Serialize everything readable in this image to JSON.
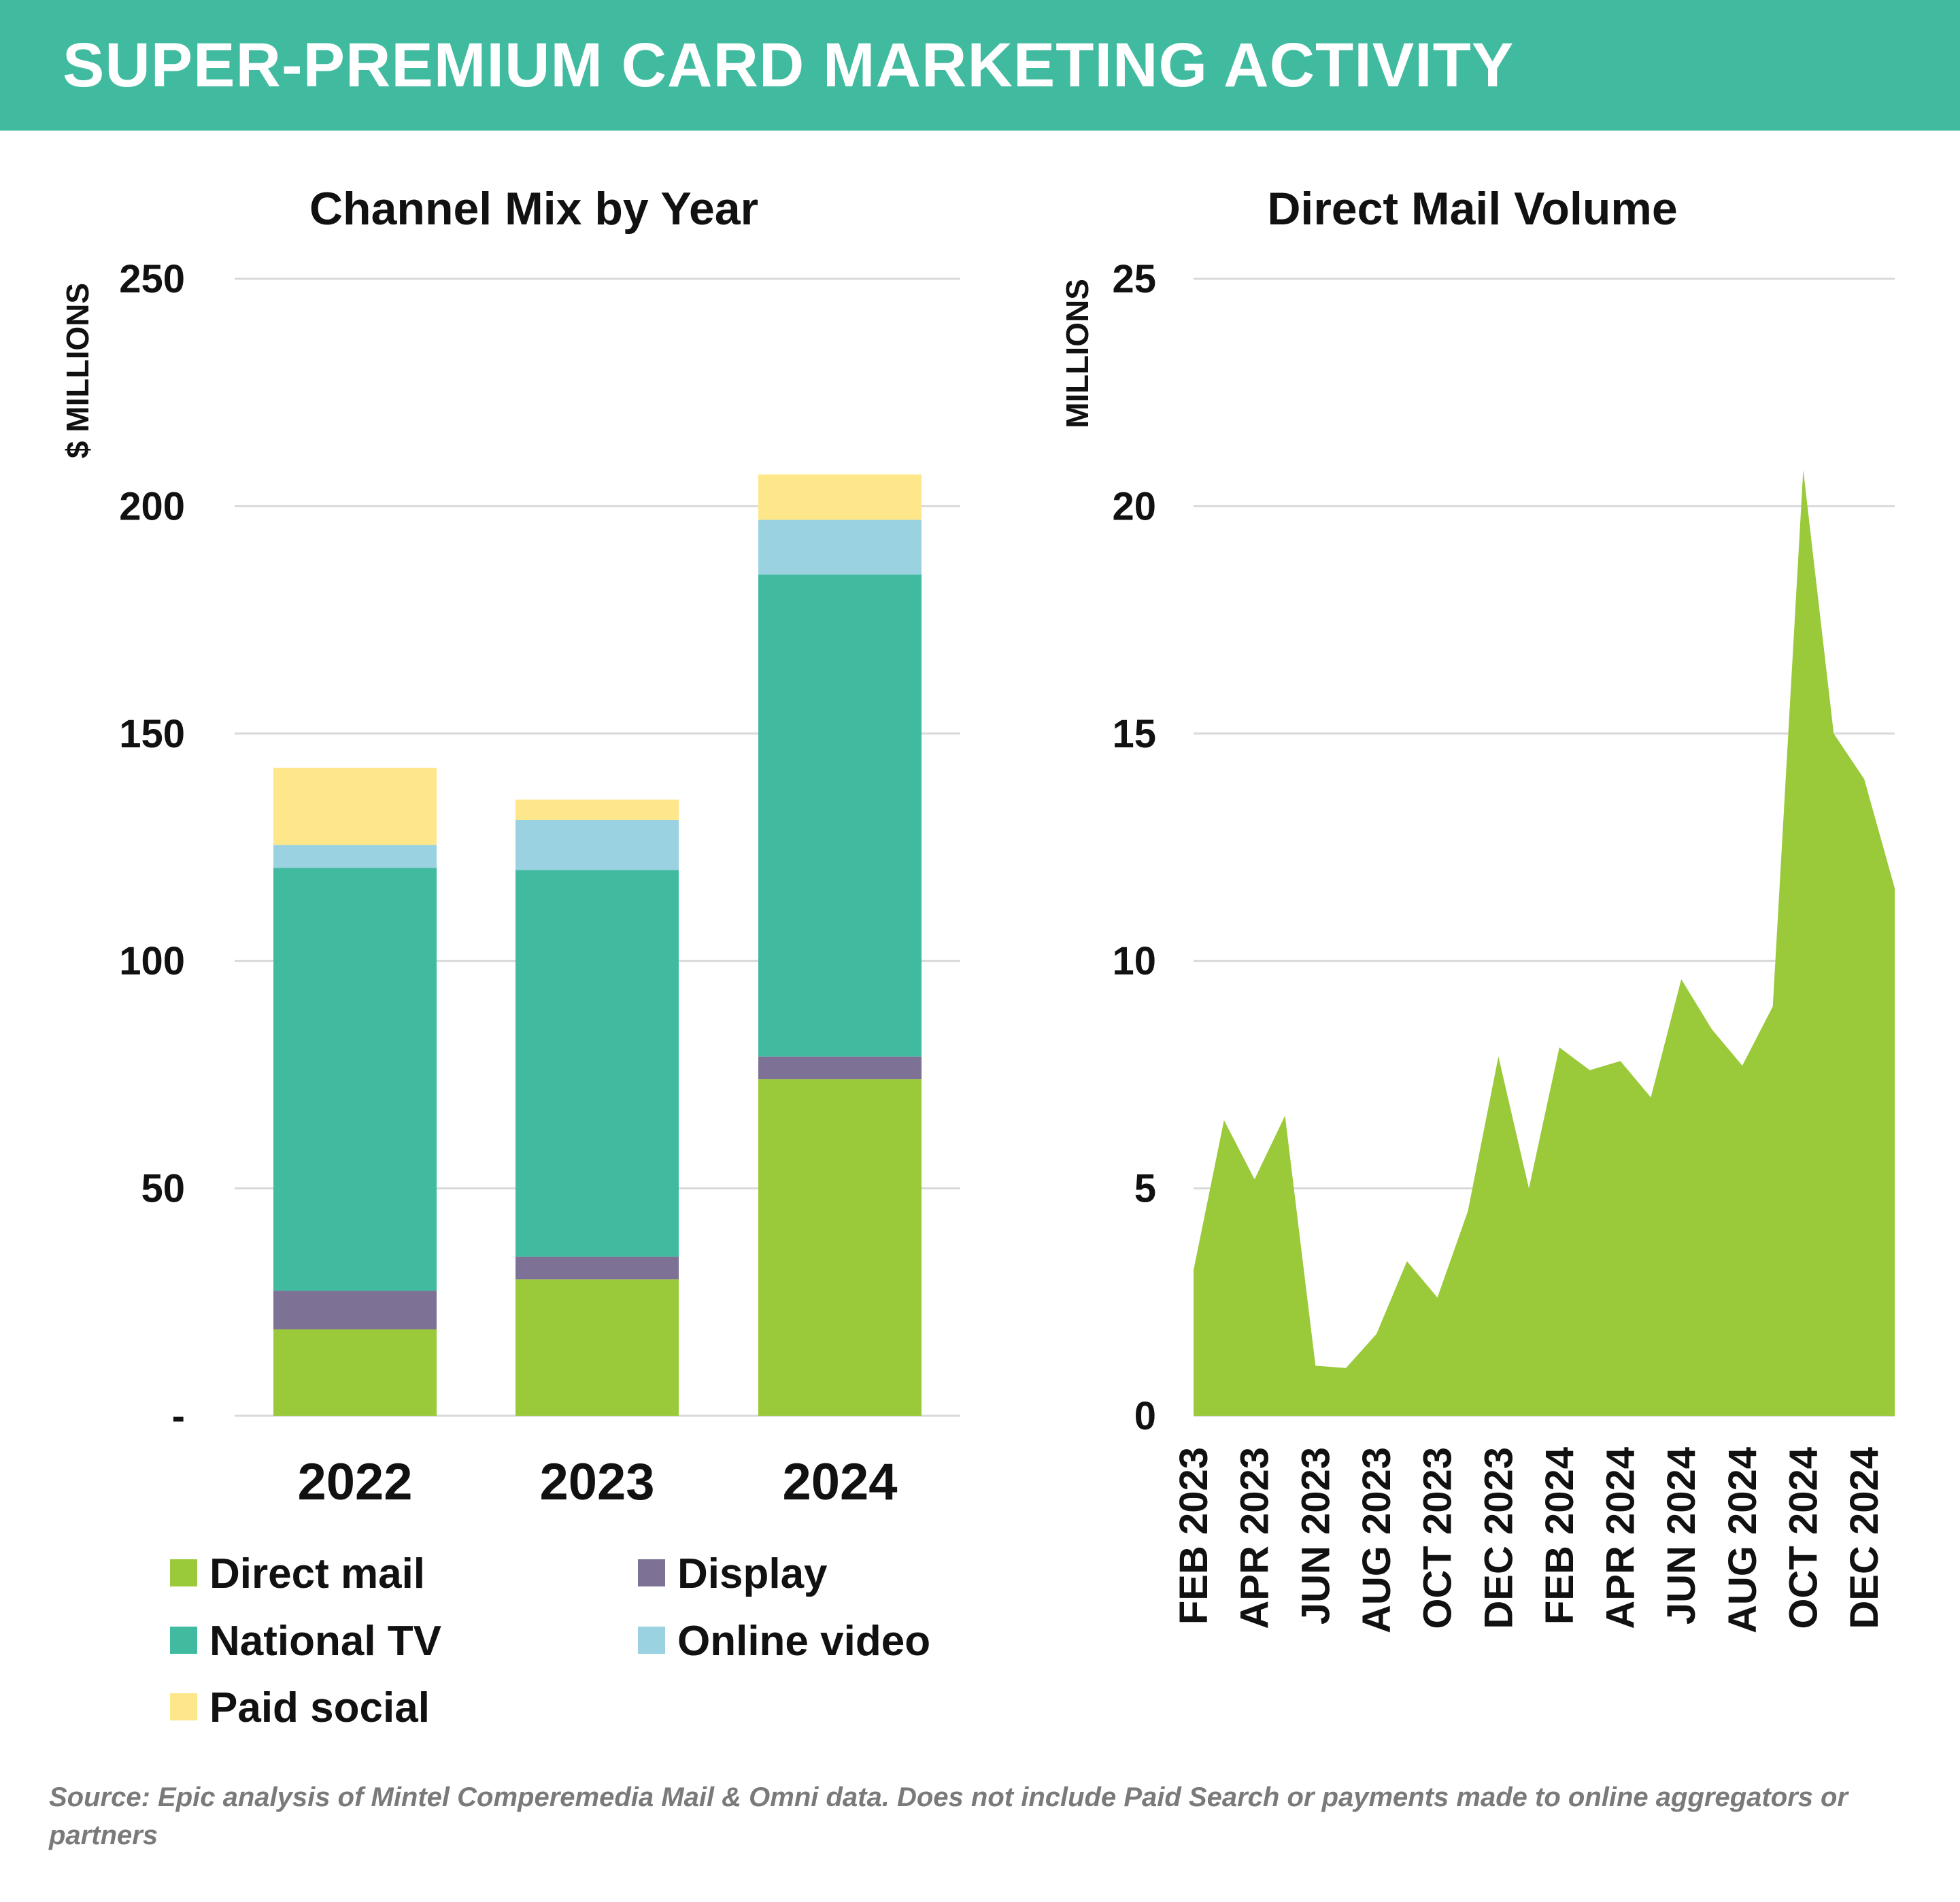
{
  "header": {
    "title": "SUPER-PREMIUM CARD MARKETING ACTIVITY"
  },
  "colors": {
    "banner": "#41bba0",
    "direct_mail": "#9ac93a",
    "display": "#7d7296",
    "national_tv": "#41bba0",
    "online_video": "#9ad2e2",
    "paid_social": "#fde78a",
    "grid": "#d9d9d9"
  },
  "chart_data": [
    {
      "type": "bar",
      "stacked": true,
      "title": "Channel Mix by Year",
      "ylabel": "$ MILLIONS",
      "xlabel": "",
      "ylim": [
        0,
        250
      ],
      "yticks": [
        0,
        50,
        100,
        150,
        200,
        250
      ],
      "ytick_labels": [
        "-",
        "50",
        "100",
        "150",
        "200",
        "250"
      ],
      "grid": true,
      "legend_position": "bottom",
      "categories": [
        "2022",
        "2023",
        "2024"
      ],
      "series": [
        {
          "name": "Direct mail",
          "color": "#9ac93a",
          "values": [
            19,
            30,
            74
          ]
        },
        {
          "name": "Display",
          "color": "#7d7296",
          "values": [
            8.5,
            5,
            5
          ]
        },
        {
          "name": "National TV",
          "color": "#41bba0",
          "values": [
            93,
            85,
            106
          ]
        },
        {
          "name": "Online video",
          "color": "#9ad2e2",
          "values": [
            5,
            11,
            12
          ]
        },
        {
          "name": "Paid social",
          "color": "#fde78a",
          "values": [
            17,
            4.5,
            10
          ]
        }
      ]
    },
    {
      "type": "area",
      "title": "Direct Mail Volume",
      "ylabel": "MILLIONS",
      "xlabel": "",
      "ylim": [
        0,
        25
      ],
      "yticks": [
        0,
        5,
        10,
        15,
        20,
        25
      ],
      "ytick_labels": [
        "0",
        "5",
        "10",
        "15",
        "20",
        "25"
      ],
      "grid": true,
      "color": "#9ac93a",
      "x": [
        "FEB 2023",
        "MAR 2023",
        "APR 2023",
        "MAY 2023",
        "JUN 2023",
        "JUL 2023",
        "AUG 2023",
        "SEP 2023",
        "OCT 2023",
        "NOV 2023",
        "DEC 2023",
        "JAN 2024",
        "FEB 2024",
        "MAR 2024",
        "APR 2024",
        "MAY 2024",
        "JUN 2024",
        "JUL 2024",
        "AUG 2024",
        "SEP 2024",
        "OCT 2024",
        "NOV 2024",
        "DEC 2024",
        "JAN 2025"
      ],
      "values": [
        3.2,
        6.5,
        5.2,
        6.6,
        1.1,
        1.05,
        1.8,
        3.4,
        2.6,
        4.5,
        7.9,
        5.0,
        8.1,
        7.6,
        7.8,
        7.0,
        9.6,
        8.5,
        7.7,
        9.0,
        20.8,
        15.0,
        14.0,
        11.6
      ],
      "x_tick_labels": [
        "FEB 2023",
        "APR 2023",
        "JUN 2023",
        "AUG 2023",
        "OCT 2023",
        "DEC 2023",
        "FEB 2024",
        "APR 2024",
        "JUN 2024",
        "AUG 2024",
        "OCT 2024",
        "DEC 2024"
      ]
    }
  ],
  "source_note": "Source: Epic analysis of Mintel Comperemedia Mail & Omni data. Does not include Paid Search or payments made to online aggregators or partners"
}
